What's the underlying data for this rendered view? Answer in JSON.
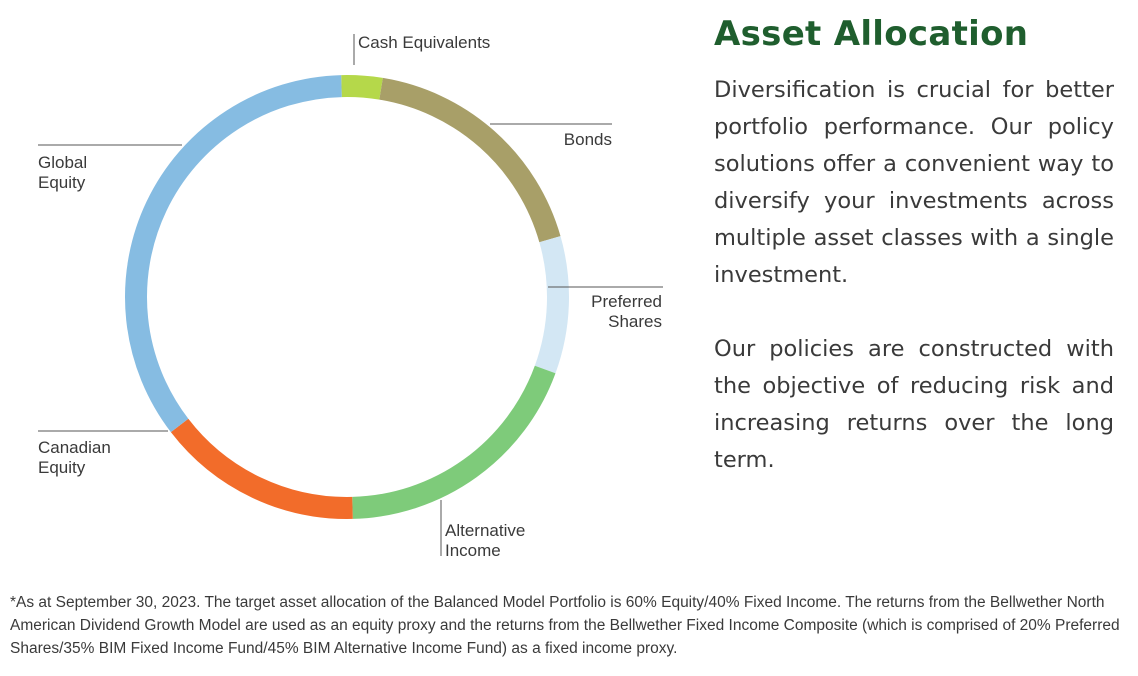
{
  "heading": "Asset Allocation",
  "paragraphs": [
    "Diversification is crucial for better portfolio performance. Our policy solutions offer a convenient way to diversify your investments across multiple asset classes with a single investment.",
    "Our policies are constructed with the objective of reducing risk and increasing returns over the long term."
  ],
  "footnote": "*As at September 30, 2023. The target asset allocation of the Balanced Model Portfolio is 60% Equity/40% Fixed Income. The returns from the Bellwether North American Dividend Growth Model are used as an equity proxy and the returns from the Bellwether Fixed Income Composite (which is comprised of 20% Preferred Shares/35% BIM Fixed Income Fund/45% BIM Alternative Income Fund) as a fixed income proxy.",
  "chart_data": {
    "type": "pie",
    "style": "donut",
    "start": "top, clockwise",
    "slices": [
      {
        "label": "Cash Equivalents",
        "label_lines": [
          "Cash Equivalents"
        ],
        "value": 3,
        "color": "#b5d84a"
      },
      {
        "label": "Bonds",
        "label_lines": [
          "Bonds"
        ],
        "value": 18,
        "color": "#a89f68"
      },
      {
        "label": "Preferred Shares",
        "label_lines": [
          "Preferred",
          "Shares"
        ],
        "value": 10,
        "color": "#d3e7f4"
      },
      {
        "label": "Alternative Income",
        "label_lines": [
          "Alternative",
          "Income"
        ],
        "value": 19,
        "color": "#7ecb7a"
      },
      {
        "label": "Canadian Equity",
        "label_lines": [
          "Canadian",
          "Equity"
        ],
        "value": 15,
        "color": "#f26c2a"
      },
      {
        "label": "Global Equity",
        "label_lines": [
          "Global",
          "Equity"
        ],
        "value": 35,
        "color": "#86bce2"
      }
    ]
  }
}
